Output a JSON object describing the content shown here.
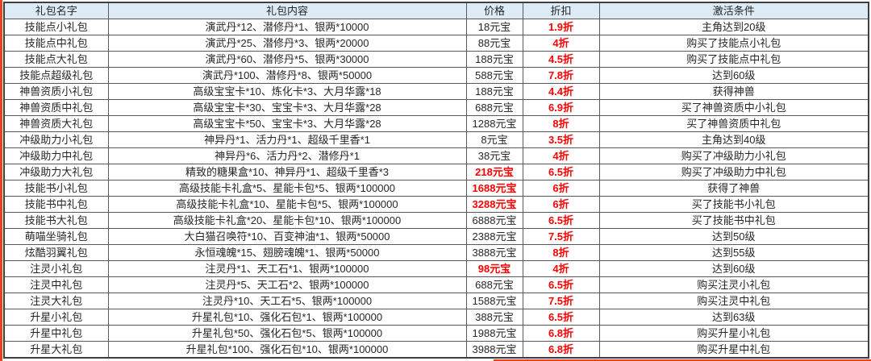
{
  "chart_data": {
    "type": "table",
    "columns": [
      "礼包名字",
      "礼包内容",
      "价格",
      "折扣",
      "激活条件"
    ],
    "rows": [
      {
        "name": "技能点小礼包",
        "content": "演武丹*12、潜修丹*1、银两*10000",
        "price": "18元宝",
        "price_highlight": false,
        "discount": "1.9折",
        "condition": "主角达到20级"
      },
      {
        "name": "技能点中礼包",
        "content": "演武丹*25、潜修丹*3、银两*20000",
        "price": "88元宝",
        "price_highlight": false,
        "discount": "4折",
        "condition": "购买了技能点小礼包"
      },
      {
        "name": "技能点大礼包",
        "content": "演武丹*60、潜修丹*5、银两*30000",
        "price": "188元宝",
        "price_highlight": false,
        "discount": "4.5折",
        "condition": "购买了技能点中礼包"
      },
      {
        "name": "技能点超级礼包",
        "content": "演武丹*100、潜修丹*8、银两*50000",
        "price": "588元宝",
        "price_highlight": false,
        "discount": "7.8折",
        "condition": "达到60级"
      },
      {
        "name": "神兽资质小礼包",
        "content": "高级宝宝卡*10、炼化卡*3、大月华露*18",
        "price": "188元宝",
        "price_highlight": false,
        "discount": "4.4折",
        "condition": "获得神兽"
      },
      {
        "name": "神兽资质中礼包",
        "content": "高级宝宝卡*30、宝宝卡*3、大月华露*28",
        "price": "688元宝",
        "price_highlight": false,
        "discount": "6.9折",
        "condition": "买了神兽资质中小礼包"
      },
      {
        "name": "神兽资质大礼包",
        "content": "高级宝宝卡*50、宝宝卡*3、大月华露*28",
        "price": "1288元宝",
        "price_highlight": false,
        "discount": "8折",
        "condition": "买了神兽资质中礼包"
      },
      {
        "name": "冲级助力小礼包",
        "content": "神异丹*1、活力丹*1、超级千里香*1",
        "price": "8元宝",
        "price_highlight": false,
        "discount": "3.5折",
        "condition": "主角达到40级"
      },
      {
        "name": "冲级助力中礼包",
        "content": "神异丹*6、活力丹*2、潜修丹*1",
        "price": "38元宝",
        "price_highlight": false,
        "discount": "4折",
        "condition": "购买了冲级助力小礼包"
      },
      {
        "name": "冲级助力大礼包",
        "content": "精致的糖果盒*10、神异丹*1、超级千里香*3",
        "price": "218元宝",
        "price_highlight": true,
        "discount": "6.5折",
        "condition": "购买了冲级助力中礼包"
      },
      {
        "name": "技能书小礼包",
        "content": "高级技能卡礼盒*5、星能卡包*5、银两*100000",
        "price": "1688元宝",
        "price_highlight": true,
        "discount": "6折",
        "condition": "获得了神兽"
      },
      {
        "name": "技能书中礼包",
        "content": "高级技能卡礼盒*10、星能卡包*5、银两*100000",
        "price": "3288元宝",
        "price_highlight": true,
        "discount": "6折",
        "condition": "买了技能书小礼包"
      },
      {
        "name": "技能书大礼包",
        "content": "高级技能卡礼盒*20、星能卡包*10、银两*100000",
        "price": "6888元宝",
        "price_highlight": false,
        "discount": "6.5折",
        "condition": "买了技能书中礼包"
      },
      {
        "name": "萌喵坐骑礼包",
        "content": "大白猫召唤符*10、百变神油*1、银两*50000",
        "price": "2388元宝",
        "price_highlight": false,
        "discount": "7.5折",
        "condition": "达到50级"
      },
      {
        "name": "炫酷羽翼礼包",
        "content": "永恒魂魄*15、翅膀魂魄*1、银两*50000",
        "price": "3888元宝",
        "price_highlight": false,
        "discount": "8折",
        "condition": "达到55级"
      },
      {
        "name": "注灵小礼包",
        "content": "注灵丹*1、天工石*1、银两*100000",
        "price": "98元宝",
        "price_highlight": true,
        "discount": "4折",
        "condition": "达到60级"
      },
      {
        "name": "注灵中礼包",
        "content": "注灵丹*5、天工石*2、银两*100000",
        "price": "688元宝",
        "price_highlight": false,
        "discount": "6.5折",
        "condition": "购买注灵小礼包"
      },
      {
        "name": "注灵大礼包",
        "content": "注灵丹*10、天工石*5、银两*100000",
        "price": "1588元宝",
        "price_highlight": false,
        "discount": "7.5折",
        "condition": "购买注灵中礼包"
      },
      {
        "name": "升星小礼包",
        "content": "升星礼包*10、强化石包*1、银两*100000",
        "price": "388元宝",
        "price_highlight": false,
        "discount": "6.5折",
        "condition": "达到63级"
      },
      {
        "name": "升星中礼包",
        "content": "升星礼包*50、强化石包*5、银两*100000",
        "price": "1988元宝",
        "price_highlight": false,
        "discount": "6.8折",
        "condition": "购买升星小礼包"
      },
      {
        "name": "升星大礼包",
        "content": "升星礼包*100、强化石包*10、银两*100000",
        "price": "3988元宝",
        "price_highlight": false,
        "discount": "6.8折",
        "condition": "购买升星中礼包"
      }
    ]
  },
  "colors": {
    "header_bg": "#DDEBF7",
    "discount_red": "#FF0000",
    "crop_mark_red": "#E8431F",
    "border_gray": "#595959",
    "outer_border": "#3F3F3F",
    "text": "#262626",
    "row_bg": "#FFFFFF"
  }
}
